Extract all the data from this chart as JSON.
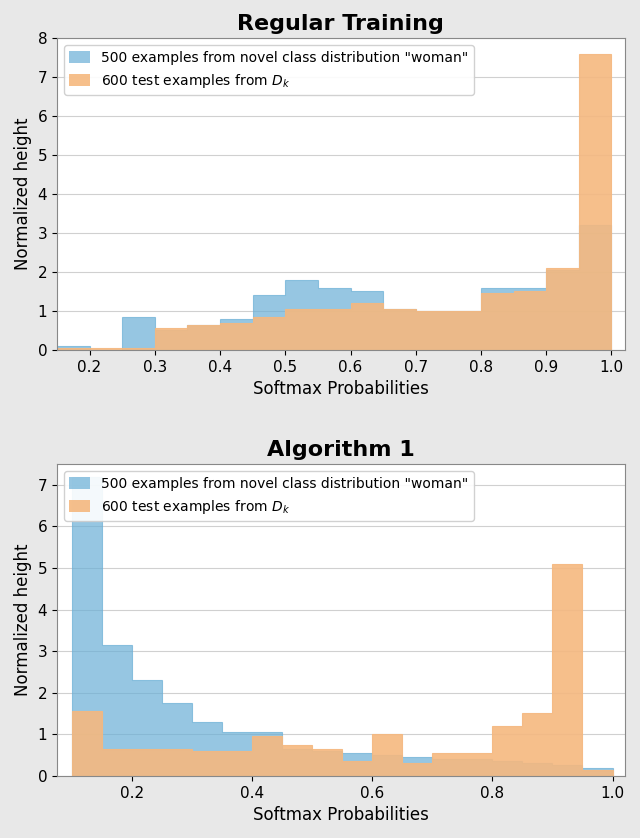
{
  "plot1": {
    "title": "Regular Training",
    "blue_edges": [
      0.15,
      0.2,
      0.25,
      0.3,
      0.35,
      0.4,
      0.45,
      0.5,
      0.55,
      0.6,
      0.65,
      0.7,
      0.75,
      0.8,
      0.85,
      0.9,
      0.95,
      1.0
    ],
    "blue_heights": [
      0.1,
      0.0,
      0.85,
      0.5,
      0.65,
      0.8,
      1.4,
      1.8,
      1.6,
      1.5,
      1.05,
      1.0,
      1.0,
      1.6,
      1.6,
      2.05,
      3.2
    ],
    "orange_edges": [
      0.15,
      0.2,
      0.25,
      0.3,
      0.35,
      0.4,
      0.45,
      0.5,
      0.55,
      0.6,
      0.65,
      0.7,
      0.75,
      0.8,
      0.85,
      0.9,
      0.95,
      1.0
    ],
    "orange_heights": [
      0.05,
      0.05,
      0.05,
      0.55,
      0.65,
      0.7,
      0.85,
      1.05,
      1.05,
      1.2,
      1.05,
      1.0,
      1.0,
      1.45,
      1.5,
      2.1,
      7.6
    ],
    "ylim": [
      0,
      8
    ],
    "yticks": [
      0,
      1,
      2,
      3,
      4,
      5,
      6,
      7,
      8
    ],
    "xlim": [
      0.15,
      1.02
    ],
    "xticks": [
      0.2,
      0.3,
      0.4,
      0.5,
      0.6,
      0.7,
      0.8,
      0.9,
      1.0
    ],
    "xticklabels": [
      "0.2",
      "0.3",
      "0.4",
      "0.5",
      "0.6",
      "0.7",
      "0.8",
      "0.9",
      "1.0"
    ]
  },
  "plot2": {
    "title": "Algorithm 1",
    "blue_edges": [
      0.1,
      0.15,
      0.2,
      0.25,
      0.3,
      0.35,
      0.4,
      0.45,
      0.5,
      0.55,
      0.6,
      0.65,
      0.7,
      0.75,
      0.8,
      0.85,
      0.9,
      0.95,
      1.0
    ],
    "blue_heights": [
      7.2,
      3.15,
      2.3,
      1.75,
      1.3,
      1.05,
      1.05,
      0.65,
      0.6,
      0.55,
      0.5,
      0.45,
      0.4,
      0.4,
      0.35,
      0.3,
      0.25,
      0.2
    ],
    "orange_edges": [
      0.1,
      0.15,
      0.2,
      0.25,
      0.3,
      0.35,
      0.4,
      0.45,
      0.5,
      0.55,
      0.6,
      0.65,
      0.7,
      0.75,
      0.8,
      0.85,
      0.9,
      0.95,
      1.0
    ],
    "orange_heights": [
      1.55,
      0.65,
      0.65,
      0.65,
      0.6,
      0.6,
      0.95,
      0.75,
      0.65,
      0.35,
      1.0,
      0.3,
      0.55,
      0.55,
      1.2,
      1.5,
      5.1,
      0.15
    ],
    "ylim": [
      0,
      7.5
    ],
    "yticks": [
      0,
      1,
      2,
      3,
      4,
      5,
      6,
      7
    ],
    "xlim": [
      0.075,
      1.02
    ],
    "xticks": [
      0.2,
      0.4,
      0.6,
      0.8,
      1.0
    ],
    "xticklabels": [
      "0.2",
      "0.4",
      "0.6",
      "0.8",
      "1.0"
    ]
  },
  "blue_color": "#6aafd6",
  "orange_color": "#f5b87f",
  "blue_alpha": 0.7,
  "orange_alpha": 0.9,
  "blue_label": "500 examples from novel class distribution \"woman\"",
  "orange_label": "600 test examples from $D_k$",
  "xlabel": "Softmax Probabilities",
  "ylabel": "Normalized height",
  "title_fontsize": 16,
  "label_fontsize": 12,
  "tick_fontsize": 11,
  "legend_fontsize": 10,
  "figure_bg": "#e8e8e8",
  "axes_bg": "white"
}
